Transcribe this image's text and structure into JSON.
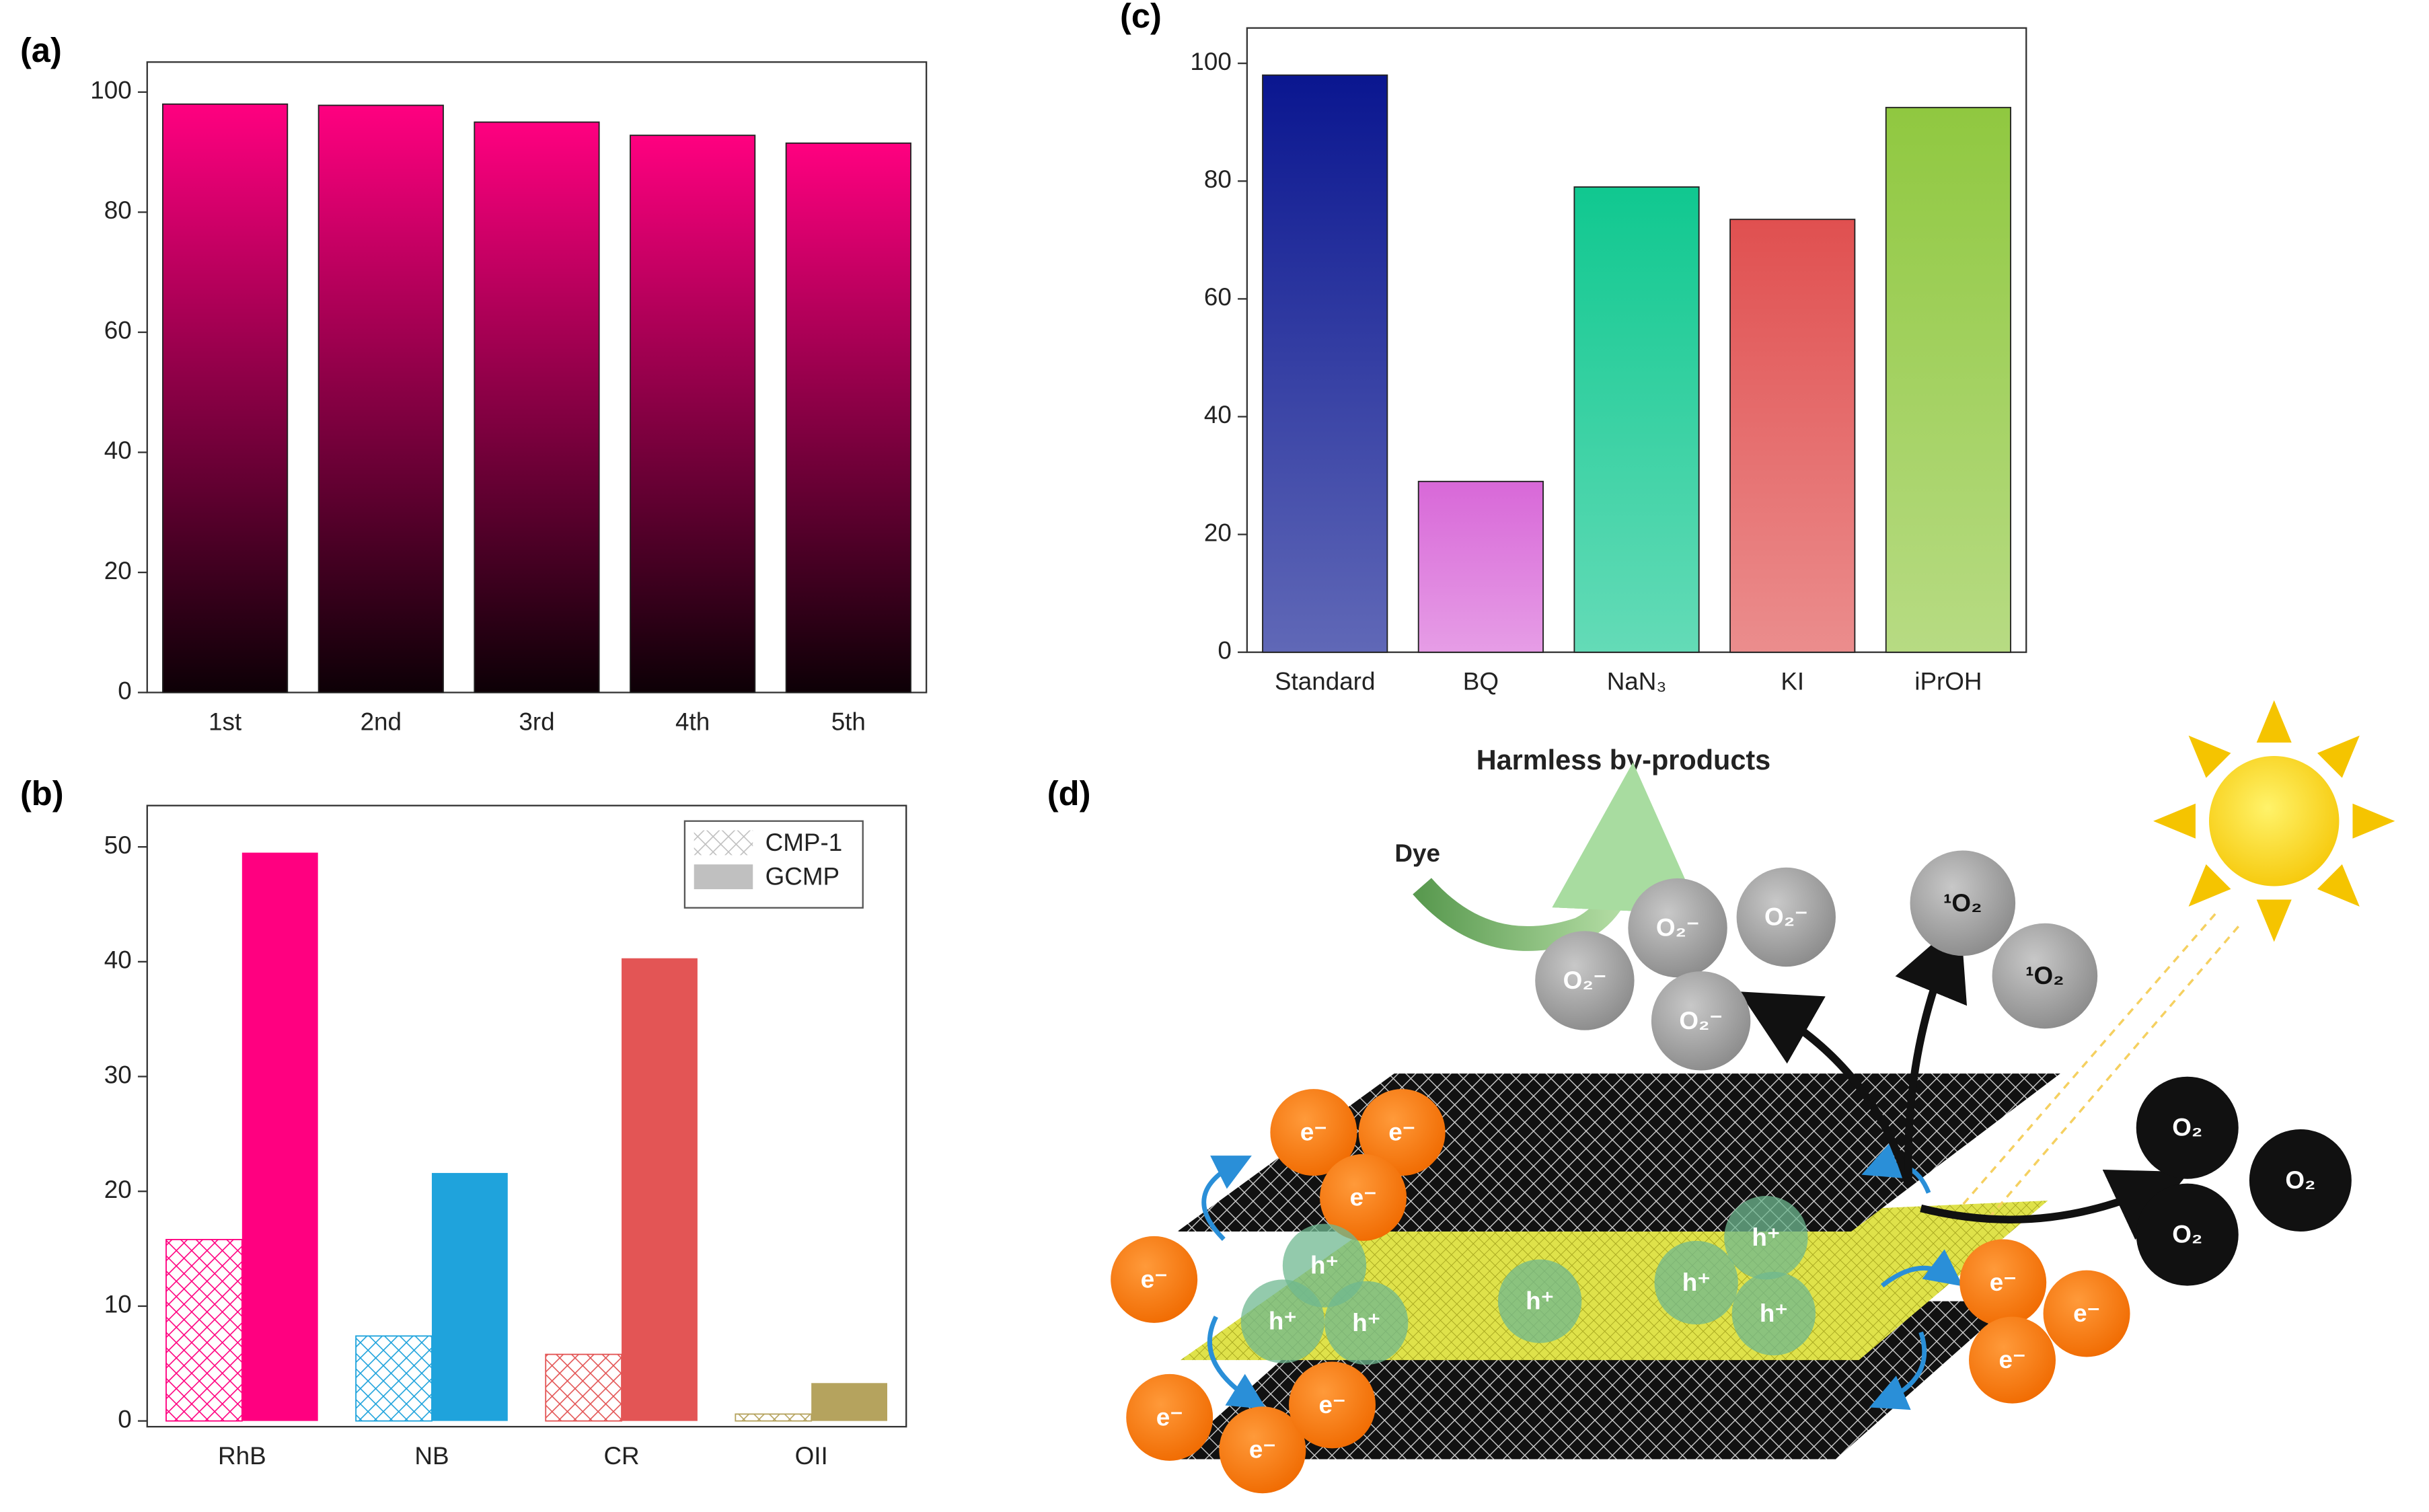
{
  "chart_data": [
    {
      "type": "bar",
      "panel_label": "(a)",
      "categories": [
        "1st",
        "2nd",
        "3rd",
        "4th",
        "5th"
      ],
      "values": [
        98,
        97.8,
        95,
        92.8,
        91.5
      ],
      "color": "#ff0080",
      "ylim": [
        0,
        105
      ],
      "yticks": [
        0,
        20,
        40,
        60,
        80,
        100
      ]
    },
    {
      "type": "bar",
      "panel_label": "(b)",
      "categories": [
        "RhB",
        "NB",
        "CR",
        "OII"
      ],
      "series": [
        {
          "name": "CMP-1",
          "color": "#c0c0c0",
          "pattern": "crosshatch",
          "values": [
            15.8,
            7.4,
            5.8,
            0.6
          ]
        },
        {
          "name": "GCMP",
          "color": "#c0c0c0",
          "values": [
            49.5,
            21.6,
            40.3,
            3.3
          ]
        }
      ],
      "category_colors": [
        "#ff0080",
        "#1fa3dc",
        "#e35555",
        "#b5a35e"
      ],
      "ylim": [
        -0.5,
        53.6
      ],
      "yticks": [
        0,
        10,
        20,
        30,
        40,
        50
      ],
      "legend": "upper right"
    },
    {
      "type": "bar",
      "panel_label": "(c)",
      "categories": [
        "Standard",
        "BQ",
        "NaN₃",
        "KI",
        "iPrOH"
      ],
      "values": [
        98,
        29,
        79,
        73.5,
        92.5
      ],
      "colors": [
        "#0a1690",
        "#d868d8",
        "#10c890",
        "#e05050",
        "#90c840"
      ],
      "ylim": [
        0,
        106
      ],
      "yticks": [
        0,
        20,
        40,
        60,
        80,
        100
      ]
    }
  ],
  "diagram": {
    "panel_label": "(d)",
    "title": "Harmless by-products",
    "input": "Dye",
    "electron": "e⁻",
    "hole": "h⁺",
    "superoxide": "O₂⁻",
    "singlet_oxygen": "¹O₂",
    "oxygen": "O₂"
  }
}
